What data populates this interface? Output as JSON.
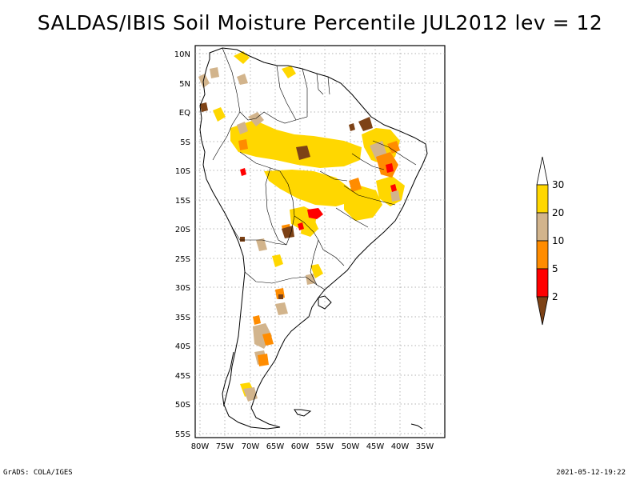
{
  "title": "SALDAS/IBIS Soil Moisture Percentile JUL2012 lev = 12",
  "map": {
    "lat_ticks": [
      "10N",
      "5N",
      "EQ",
      "5S",
      "10S",
      "15S",
      "20S",
      "25S",
      "30S",
      "35S",
      "40S",
      "45S",
      "50S",
      "55S"
    ],
    "lon_ticks": [
      "80W",
      "75W",
      "70W",
      "65W",
      "60W",
      "55W",
      "50W",
      "45W",
      "40W",
      "35W"
    ],
    "grid": true,
    "lon_range": [
      -81,
      -33
    ],
    "lat_range": [
      -56,
      12
    ]
  },
  "colorbar": {
    "labels": [
      "2",
      "5",
      "10",
      "20",
      "30"
    ],
    "colors": {
      "below_2": "#7d4216",
      "2_5": "#ff0000",
      "5_10": "#ff8c00",
      "10_20": "#d2b48c",
      "20_30": "#ffd700",
      "above_30": "#ffffff"
    }
  },
  "footer": {
    "left": "GrADS: COLA/IGES",
    "right": "2021-05-12-19:22"
  }
}
